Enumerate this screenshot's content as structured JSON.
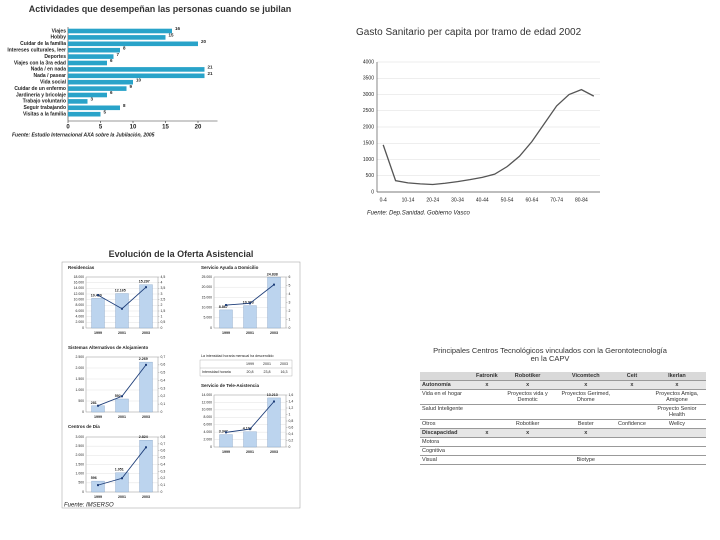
{
  "chart_data": [
    {
      "type": "hbar",
      "title": "Actividades que desempeñan las personas cuando se jubilan",
      "categories": [
        "Viajes",
        "Hobby",
        "Cuidar de la familia",
        "Intereses culturales, leer",
        "Deportes",
        "Viajes con la 3ra edad",
        "Nada / en nada",
        "Nada / pasear",
        "Vida social",
        "Cuidar de un enfermo",
        "Jardinería y bricolaje",
        "Trabajo voluntario",
        "Seguir trabajando",
        "Visitas a la familia"
      ],
      "values": [
        16,
        15,
        20,
        8,
        7,
        6,
        21,
        21,
        10,
        9,
        6,
        3,
        8,
        5
      ],
      "color": "#29a3c9",
      "xlim": [
        0,
        23
      ],
      "xticks": [
        0,
        5,
        10,
        15,
        20
      ],
      "source": "Fuente: Estudio Internacional AXA sobre la Jubilación, 2005"
    },
    {
      "type": "line",
      "title": "Gasto Sanitario per capita por tramo de edad 2002",
      "categories": [
        "0-4",
        null,
        "10-14",
        null,
        "20-24",
        null,
        "30-34",
        null,
        "40-44",
        null,
        "50-54",
        null,
        "60-64",
        null,
        "70-74",
        null,
        "80-84",
        null
      ],
      "values": [
        1450,
        350,
        280,
        250,
        230,
        270,
        320,
        380,
        450,
        550,
        780,
        1100,
        1550,
        2100,
        2650,
        3000,
        3150,
        2950
      ],
      "color": "#555555",
      "ylim": [
        0,
        4000
      ],
      "yticks": [
        0,
        500,
        1000,
        1500,
        2000,
        2500,
        3000,
        3500,
        4000
      ],
      "grid": true,
      "source": "Fuente: Dep.Sanidad. Gobierno Vasco"
    },
    {
      "type": "panel",
      "title": "Evolución de la Oferta Asistencial",
      "source": "Fuente: IMSERSO",
      "charts": [
        {
          "type": "bar_line",
          "title": "Residencias",
          "categories": [
            "1999",
            "2001",
            "2003"
          ],
          "values": [
            10450,
            12165,
            15297
          ],
          "value_labels": [
            "10.450",
            "12.165",
            "15.297"
          ],
          "line_values": [
            2.9,
            1.7,
            3.6
          ],
          "color": "#bcd4ee",
          "line_color": "#1f3f7a",
          "ylim": [
            0,
            18000
          ],
          "yticks": [
            0,
            {
              "value": 2000,
              "label": "2.000"
            },
            {
              "value": 4000,
              "label": "4.000"
            },
            {
              "value": 6000,
              "label": "6.000"
            },
            {
              "value": 8000,
              "label": "8.000"
            },
            {
              "value": 10000,
              "label": "10.000"
            },
            {
              "value": 12000,
              "label": "12.000"
            },
            {
              "value": 14000,
              "label": "14.000"
            },
            {
              "value": 16000,
              "label": "16.000"
            },
            {
              "value": 18000,
              "label": "18.000"
            }
          ],
          "y2lim": [
            0,
            4.5
          ],
          "y2ticks": [
            0,
            {
              "value": 0.5,
              "label": "0,5"
            },
            1,
            {
              "value": 1.5,
              "label": "1,5"
            },
            2,
            {
              "value": 2.5,
              "label": "2,5"
            },
            3,
            {
              "value": 3.5,
              "label": "3,5"
            },
            4,
            {
              "value": 4.5,
              "label": "4,5"
            }
          ]
        },
        {
          "type": "bar_line",
          "title": "Servicio Ayuda a Domicilio",
          "categories": [
            "1999",
            "2001",
            "2003"
          ],
          "values": [
            8867,
            10993,
            24838
          ],
          "value_labels": [
            "8.867",
            "10.993",
            "24.838"
          ],
          "line_values": [
            2.7,
            2.9,
            5.1
          ],
          "color": "#bcd4ee",
          "line_color": "#1f3f7a",
          "ylim": [
            0,
            25000
          ],
          "yticks": [
            0,
            {
              "value": 5000,
              "label": "5.000"
            },
            {
              "value": 10000,
              "label": "10.000"
            },
            {
              "value": 15000,
              "label": "15.000"
            },
            {
              "value": 20000,
              "label": "20.000"
            },
            {
              "value": 25000,
              "label": "25.000"
            }
          ],
          "y2lim": [
            0,
            6
          ],
          "y2ticks": [
            0,
            1,
            2,
            3,
            4,
            5,
            6
          ],
          "note_table": {
            "title": "La intensidad horaria mensual ha descendido",
            "columns": [
              "1999",
              "2001",
              "2003"
            ],
            "row": "Intensidad horaria",
            "cells": [
              "20,8",
              "23,8",
              "16,3"
            ]
          }
        },
        {
          "type": "bar_line",
          "title": "Sistemas Alternativos de Alojamiento",
          "categories": [
            "1999",
            "2001",
            "2003"
          ],
          "values": [
            281,
            592,
            2269
          ],
          "value_labels": [
            "281",
            "592",
            "2.269"
          ],
          "line_values": [
            0.08,
            0.2,
            0.6
          ],
          "color": "#bcd4ee",
          "line_color": "#1f3f7a",
          "ylim": [
            0,
            2500
          ],
          "yticks": [
            0,
            500,
            {
              "value": 1000,
              "label": "1.000"
            },
            {
              "value": 1500,
              "label": "1.500"
            },
            {
              "value": 2000,
              "label": "2.000"
            },
            {
              "value": 2500,
              "label": "2.500"
            }
          ],
          "y2lim": [
            0,
            0.7
          ],
          "y2ticks": [
            0,
            {
              "value": 0.1,
              "label": "0,1"
            },
            {
              "value": 0.2,
              "label": "0,2"
            },
            {
              "value": 0.3,
              "label": "0,3"
            },
            {
              "value": 0.4,
              "label": "0,4"
            },
            {
              "value": 0.5,
              "label": "0,5"
            },
            {
              "value": 0.6,
              "label": "0,6"
            },
            {
              "value": 0.7,
              "label": "0,7"
            }
          ]
        },
        {
          "type": "bar_line",
          "title": "Servicio de Tele-Asistencia",
          "categories": [
            "1999",
            "2001",
            "2003"
          ],
          "values": [
            3347,
            4104,
            13213
          ],
          "value_labels": [
            "3.347",
            "4.104",
            "13.213"
          ],
          "line_values": [
            0.45,
            0.55,
            1.4
          ],
          "color": "#bcd4ee",
          "line_color": "#1f3f7a",
          "ylim": [
            0,
            14000
          ],
          "yticks": [
            0,
            {
              "value": 2000,
              "label": "2.000"
            },
            {
              "value": 4000,
              "label": "4.000"
            },
            {
              "value": 6000,
              "label": "6.000"
            },
            {
              "value": 8000,
              "label": "8.000"
            },
            {
              "value": 10000,
              "label": "10.000"
            },
            {
              "value": 12000,
              "label": "12.000"
            },
            {
              "value": 14000,
              "label": "14.000"
            }
          ],
          "y2lim": [
            0,
            1.6
          ],
          "y2ticks": [
            0,
            {
              "value": 0.2,
              "label": "0,2"
            },
            {
              "value": 0.4,
              "label": "0,4"
            },
            {
              "value": 0.6,
              "label": "0,6"
            },
            {
              "value": 0.8,
              "label": "0,8"
            },
            1,
            {
              "value": 1.2,
              "label": "1,2"
            },
            {
              "value": 1.4,
              "label": "1,4"
            },
            {
              "value": 1.6,
              "label": "1,6"
            }
          ]
        },
        {
          "type": "bar_line",
          "title": "Centros de Día",
          "categories": [
            "1999",
            "2001",
            "2003"
          ],
          "values": [
            596,
            1051,
            2824
          ],
          "value_labels": [
            "596",
            "1.051",
            "2.824"
          ],
          "line_values": [
            0.1,
            0.2,
            0.65
          ],
          "color": "#bcd4ee",
          "line_color": "#1f3f7a",
          "ylim": [
            0,
            3000
          ],
          "yticks": [
            0,
            500,
            {
              "value": 1000,
              "label": "1.000"
            },
            {
              "value": 1500,
              "label": "1.500"
            },
            {
              "value": 2000,
              "label": "2.000"
            },
            {
              "value": 2500,
              "label": "2.500"
            },
            {
              "value": 3000,
              "label": "3.000"
            }
          ],
          "y2lim": [
            0,
            0.8
          ],
          "y2ticks": [
            0,
            {
              "value": 0.1,
              "label": "0,1"
            },
            {
              "value": 0.2,
              "label": "0,2"
            },
            {
              "value": 0.3,
              "label": "0,3"
            },
            {
              "value": 0.4,
              "label": "0,4"
            },
            {
              "value": 0.5,
              "label": "0,5"
            },
            {
              "value": 0.6,
              "label": "0,6"
            },
            {
              "value": 0.7,
              "label": "0,7"
            },
            {
              "value": 0.8,
              "label": "0,8"
            }
          ]
        }
      ]
    }
  ],
  "table": {
    "title": "Principales Centros Tecnológicos vinculados con la Gerontotecnología en la CAPV",
    "columns": [
      "Fatronik",
      "Robotiker",
      "Vicomtech",
      "Ceit",
      "Ikerlan"
    ],
    "rows": [
      {
        "label": "Autonomía",
        "cells": [
          "x",
          "x",
          "x",
          "x",
          "x"
        ]
      },
      {
        "label": "Vida en el hogar",
        "cells": [
          null,
          "Proyectos vida y Demotic",
          "Proyectos Gerimed, Dhome",
          null,
          "Proyectos Amiga, Amigone"
        ]
      },
      {
        "label": "Salud Inteligente",
        "cells": [
          null,
          null,
          null,
          null,
          "Proyecto Senior Health"
        ]
      },
      {
        "label": "Otros",
        "cells": [
          null,
          "Robotiker",
          "Bester",
          "Confidence",
          "Wellcy"
        ]
      },
      {
        "label": "Discapacidad",
        "cells": [
          "x",
          "x",
          "x",
          null,
          null
        ]
      },
      {
        "label": "Motora",
        "cells": [
          null,
          null,
          null,
          null,
          null
        ]
      },
      {
        "label": "Cognitiva",
        "cells": [
          null,
          null,
          null,
          null,
          null
        ]
      },
      {
        "label": "Visual",
        "cells": [
          null,
          null,
          "Biotype",
          null,
          null
        ]
      }
    ]
  }
}
